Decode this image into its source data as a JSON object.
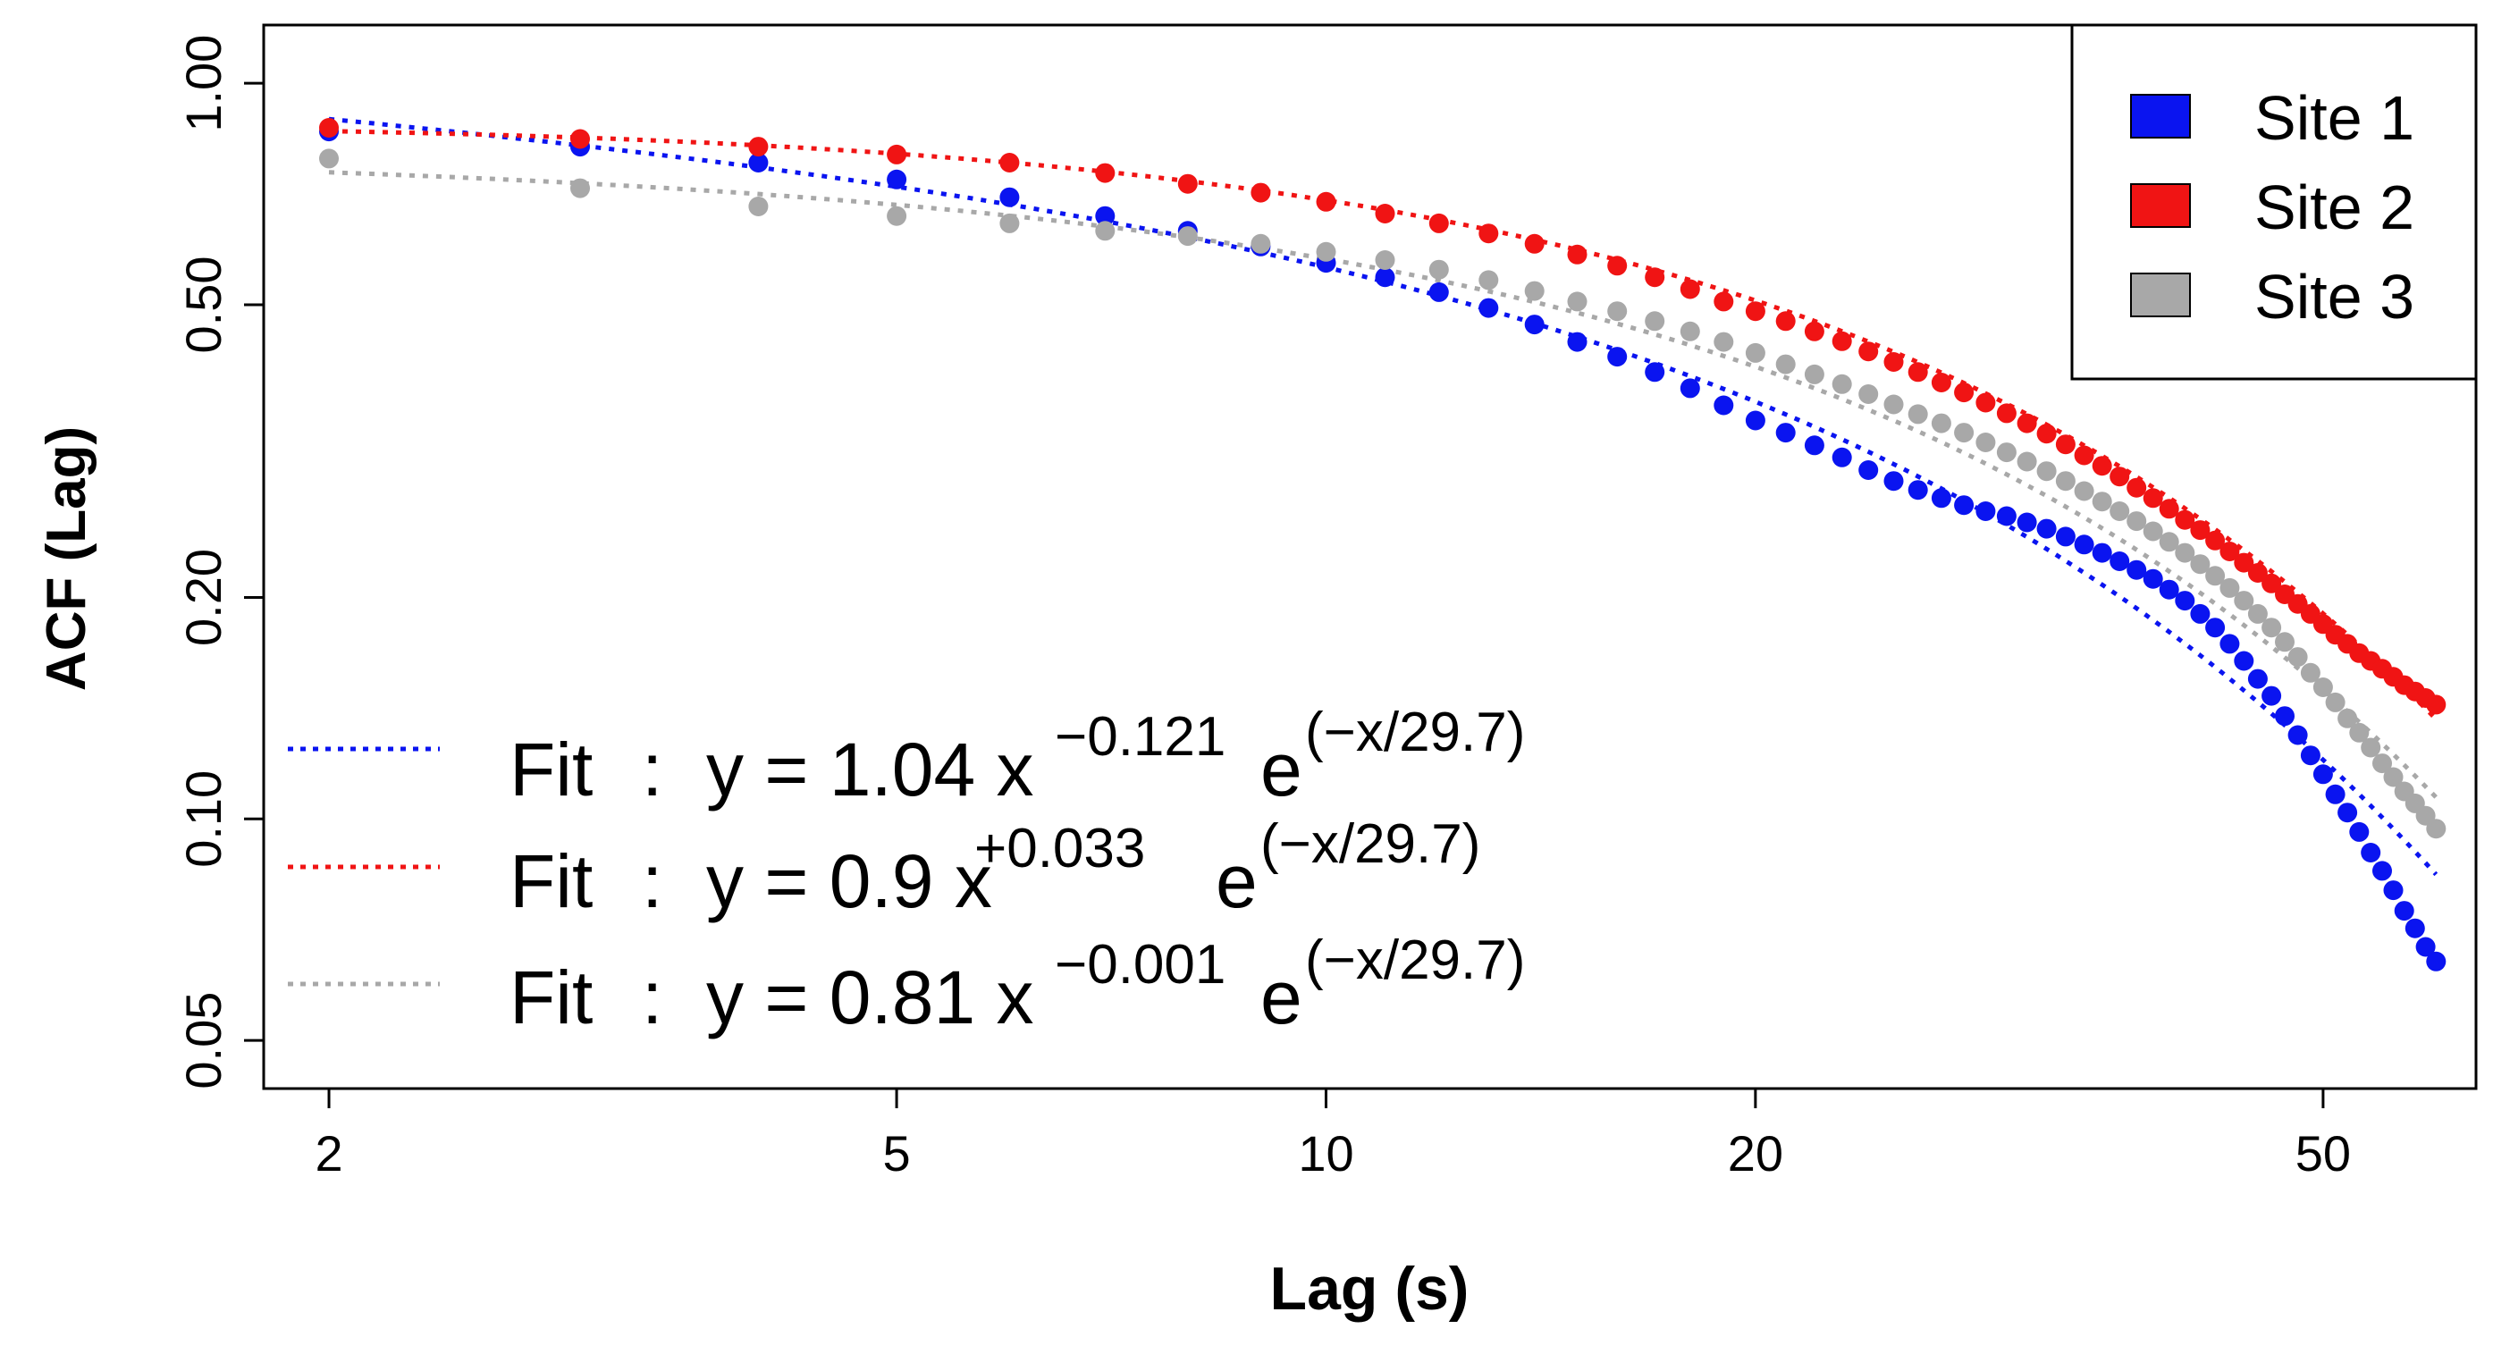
{
  "chart_data": {
    "type": "scatter",
    "xscale": "log",
    "yscale": "log",
    "xlabel": "Lag (s)",
    "ylabel": "ACF (Lag)",
    "xlim": [
      1.8,
      64
    ],
    "ylim": [
      0.043,
      1.2
    ],
    "xticks": [
      {
        "value": 2,
        "label": "2"
      },
      {
        "value": 5,
        "label": "5"
      },
      {
        "value": 10,
        "label": "10"
      },
      {
        "value": 20,
        "label": "20"
      },
      {
        "value": 50,
        "label": "50"
      }
    ],
    "yticks": [
      {
        "value": 0.05,
        "label": "0.05"
      },
      {
        "value": 0.1,
        "label": "0.10"
      },
      {
        "value": 0.2,
        "label": "0.20"
      },
      {
        "value": 0.5,
        "label": "0.50"
      },
      {
        "value": 1.0,
        "label": "1.00"
      }
    ],
    "grid": false,
    "legend_position": "top-right",
    "x": [
      2,
      3,
      4,
      5,
      6,
      7,
      8,
      9,
      10,
      11,
      12,
      13,
      14,
      15,
      16,
      17,
      18,
      19,
      20,
      21,
      22,
      23,
      24,
      25,
      26,
      27,
      28,
      29,
      30,
      31,
      32,
      33,
      34,
      35,
      36,
      37,
      38,
      39,
      40,
      41,
      42,
      43,
      44,
      45,
      46,
      47,
      48,
      49,
      50,
      51,
      52,
      53,
      54,
      55,
      56,
      57,
      58,
      59,
      60
    ],
    "series": [
      {
        "name": "Site 1",
        "color": "#0a14f0",
        "values": [
          0.86,
          0.82,
          0.78,
          0.74,
          0.7,
          0.66,
          0.63,
          0.6,
          0.57,
          0.545,
          0.52,
          0.495,
          0.47,
          0.445,
          0.425,
          0.405,
          0.385,
          0.365,
          0.348,
          0.335,
          0.322,
          0.31,
          0.298,
          0.288,
          0.28,
          0.273,
          0.267,
          0.262,
          0.258,
          0.253,
          0.248,
          0.242,
          0.236,
          0.23,
          0.224,
          0.218,
          0.212,
          0.205,
          0.198,
          0.19,
          0.182,
          0.173,
          0.164,
          0.155,
          0.147,
          0.138,
          0.13,
          0.122,
          0.115,
          0.108,
          0.102,
          0.096,
          0.09,
          0.085,
          0.08,
          0.075,
          0.071,
          0.067,
          0.064
        ],
        "fit": {
          "a": 1.04,
          "b": -0.121,
          "tau": 29.7
        }
      },
      {
        "name": "Site 2",
        "color": "#f01414",
        "values": [
          0.87,
          0.84,
          0.82,
          0.8,
          0.78,
          0.755,
          0.73,
          0.71,
          0.69,
          0.665,
          0.645,
          0.625,
          0.605,
          0.585,
          0.565,
          0.545,
          0.525,
          0.505,
          0.49,
          0.475,
          0.46,
          0.446,
          0.432,
          0.418,
          0.405,
          0.392,
          0.38,
          0.368,
          0.356,
          0.345,
          0.334,
          0.323,
          0.312,
          0.302,
          0.292,
          0.282,
          0.273,
          0.264,
          0.255,
          0.247,
          0.239,
          0.231,
          0.223,
          0.216,
          0.209,
          0.202,
          0.196,
          0.19,
          0.184,
          0.178,
          0.173,
          0.168,
          0.164,
          0.16,
          0.156,
          0.152,
          0.149,
          0.146,
          0.143
        ],
        "fit": {
          "a": 0.9,
          "b": 0.033,
          "tau": 29.7
        }
      },
      {
        "name": "Site 3",
        "color": "#a8a8a8",
        "values": [
          0.79,
          0.72,
          0.68,
          0.66,
          0.645,
          0.63,
          0.62,
          0.605,
          0.59,
          0.575,
          0.558,
          0.54,
          0.522,
          0.505,
          0.49,
          0.475,
          0.46,
          0.445,
          0.43,
          0.415,
          0.402,
          0.39,
          0.378,
          0.366,
          0.355,
          0.345,
          0.335,
          0.325,
          0.315,
          0.306,
          0.297,
          0.288,
          0.279,
          0.27,
          0.262,
          0.254,
          0.246,
          0.238,
          0.23,
          0.222,
          0.214,
          0.206,
          0.198,
          0.19,
          0.182,
          0.174,
          0.166,
          0.158,
          0.151,
          0.144,
          0.137,
          0.131,
          0.125,
          0.119,
          0.114,
          0.109,
          0.105,
          0.101,
          0.097
        ],
        "fit": {
          "a": 0.81,
          "b": -0.001,
          "tau": 29.7
        }
      }
    ],
    "fit_annotations": [
      {
        "series": "Site 1",
        "prefix": "Fit",
        "colon": ":",
        "lhs": "y = 1.04 x",
        "exponent": "−0.121",
        "base": "e",
        "exp_expr": "(−x/29.7)"
      },
      {
        "series": "Site 2",
        "prefix": "Fit",
        "colon": ":",
        "lhs": "y = 0.9 x",
        "exponent": "+0.033",
        "base": "e",
        "exp_expr": "(−x/29.7)"
      },
      {
        "series": "Site 3",
        "prefix": "Fit",
        "colon": ":",
        "lhs": "y = 0.81 x",
        "exponent": "−0.001",
        "base": "e",
        "exp_expr": "(−x/29.7)"
      }
    ]
  }
}
